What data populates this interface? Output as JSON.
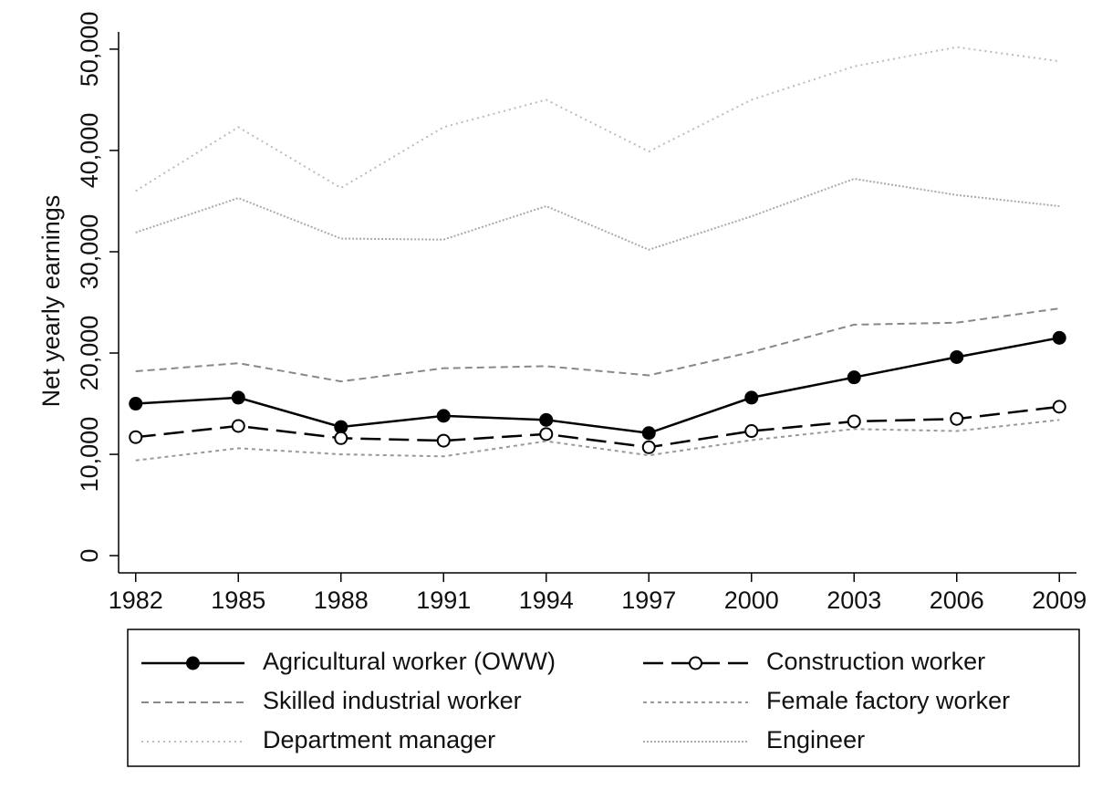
{
  "chart_data": {
    "type": "line",
    "y_label": "Net yearly earnings",
    "x": [
      1982,
      1985,
      1988,
      1991,
      1994,
      1997,
      2000,
      2003,
      2006,
      2009
    ],
    "xlim": [
      1981.5,
      2009.5
    ],
    "xticks": [
      1982,
      1985,
      1988,
      1991,
      1994,
      1997,
      2000,
      2003,
      2006,
      2009
    ],
    "ylim": [
      -1700,
      51700
    ],
    "yticks": [
      0,
      {
        "value": 10000,
        "label": "10,000"
      },
      {
        "value": 20000,
        "label": "20,000"
      },
      {
        "value": 30000,
        "label": "30,000"
      },
      {
        "value": 40000,
        "label": "40,000"
      },
      {
        "value": 50000,
        "label": "50,000"
      }
    ],
    "legend": "bottom",
    "series": [
      {
        "name": "Agricultural worker (OWW)",
        "color": "#000000",
        "dash": "none",
        "width": 2.5,
        "marker": "filled-circle",
        "values": [
          15000,
          15600,
          12700,
          13800,
          13400,
          12100,
          15600,
          17600,
          19600,
          21500
        ]
      },
      {
        "name": "Construction worker",
        "color": "#000000",
        "dash": "22,9",
        "width": 2.5,
        "marker": "open-circle",
        "values": [
          11700,
          12800,
          11600,
          11350,
          12000,
          10700,
          12300,
          13250,
          13500,
          14700
        ]
      },
      {
        "name": "Skilled industrial worker",
        "color": "#888888",
        "dash": "8,5",
        "width": 2,
        "marker": "none",
        "values": [
          18200,
          19000,
          17200,
          18500,
          18700,
          17800,
          20100,
          22800,
          23000,
          24400
        ]
      },
      {
        "name": "Female factory worker",
        "color": "#999999",
        "dash": "4,4",
        "width": 2,
        "marker": "none",
        "values": [
          9400,
          10600,
          10000,
          9800,
          11300,
          9900,
          11400,
          12500,
          12300,
          13400
        ]
      },
      {
        "name": "Department manager",
        "color": "#bbbbbb",
        "dash": "2,4",
        "width": 2,
        "marker": "none",
        "values": [
          36000,
          42300,
          36300,
          42300,
          45000,
          39900,
          45000,
          48300,
          50200,
          48800
        ]
      },
      {
        "name": "Engineer",
        "color": "#aaaaaa",
        "dash": "2,2",
        "width": 2,
        "marker": "none",
        "values": [
          31900,
          35300,
          31300,
          31200,
          34500,
          30200,
          33500,
          37200,
          35600,
          34500
        ]
      }
    ]
  }
}
